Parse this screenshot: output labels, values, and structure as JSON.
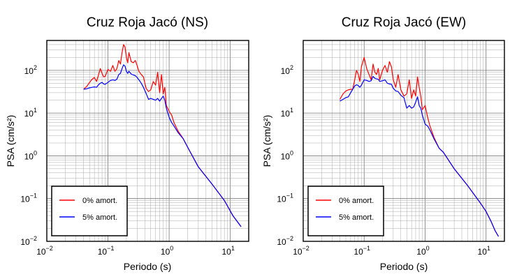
{
  "chart_data": [
    {
      "type": "line",
      "title": "Cruz Roja Jacó (NS)",
      "xlabel": "Periodo (s)",
      "ylabel": "PSA (cm/s²)",
      "xscale": "log",
      "yscale": "log",
      "xlim": [
        0.01,
        20
      ],
      "ylim": [
        0.01,
        500
      ],
      "xticks": [
        0.01,
        0.1,
        1,
        10
      ],
      "xtick_labels": [
        {
          "base": "10",
          "exp": "−2"
        },
        {
          "base": "10",
          "exp": "−1"
        },
        {
          "base": "10",
          "exp": "0"
        },
        {
          "base": "10",
          "exp": "1"
        }
      ],
      "yticks": [
        0.01,
        0.1,
        1,
        10,
        100
      ],
      "ytick_labels": [
        {
          "base": "10",
          "exp": "−2"
        },
        {
          "base": "10",
          "exp": "−1"
        },
        {
          "base": "10",
          "exp": "0"
        },
        {
          "base": "10",
          "exp": "1"
        },
        {
          "base": "10",
          "exp": "2"
        }
      ],
      "grid": true,
      "legend_position": "bottom-left",
      "series": [
        {
          "name": "0% amort.",
          "color": "#ff0000",
          "points": [
            [
              0.04,
              36
            ],
            [
              0.045,
              42
            ],
            [
              0.05,
              52
            ],
            [
              0.055,
              62
            ],
            [
              0.06,
              68
            ],
            [
              0.065,
              55
            ],
            [
              0.07,
              78
            ],
            [
              0.075,
              110
            ],
            [
              0.08,
              85
            ],
            [
              0.085,
              70
            ],
            [
              0.09,
              72
            ],
            [
              0.1,
              105
            ],
            [
              0.11,
              95
            ],
            [
              0.12,
              130
            ],
            [
              0.13,
              95
            ],
            [
              0.14,
              110
            ],
            [
              0.15,
              170
            ],
            [
              0.16,
              140
            ],
            [
              0.17,
              260
            ],
            [
              0.18,
              400
            ],
            [
              0.19,
              350
            ],
            [
              0.2,
              200
            ],
            [
              0.21,
              150
            ],
            [
              0.22,
              260
            ],
            [
              0.24,
              160
            ],
            [
              0.26,
              150
            ],
            [
              0.28,
              170
            ],
            [
              0.3,
              130
            ],
            [
              0.32,
              95
            ],
            [
              0.35,
              80
            ],
            [
              0.38,
              70
            ],
            [
              0.42,
              38
            ],
            [
              0.46,
              32
            ],
            [
              0.5,
              35
            ],
            [
              0.55,
              55
            ],
            [
              0.6,
              45
            ],
            [
              0.65,
              90
            ],
            [
              0.7,
              30
            ],
            [
              0.75,
              80
            ],
            [
              0.8,
              28
            ],
            [
              0.85,
              40
            ],
            [
              0.9,
              15
            ],
            [
              1.0,
              11
            ],
            [
              1.1,
              9
            ],
            [
              1.2,
              6
            ],
            [
              1.4,
              3.8
            ],
            [
              1.7,
              2.5
            ],
            [
              2,
              1.6
            ],
            [
              3,
              0.55
            ],
            [
              5,
              0.22
            ],
            [
              8,
              0.09
            ],
            [
              11,
              0.04
            ],
            [
              15,
              0.022
            ]
          ]
        },
        {
          "name": "5% amort.",
          "color": "#0000ff",
          "points": [
            [
              0.04,
              36
            ],
            [
              0.045,
              37
            ],
            [
              0.05,
              39
            ],
            [
              0.055,
              40
            ],
            [
              0.06,
              41
            ],
            [
              0.065,
              40
            ],
            [
              0.07,
              46
            ],
            [
              0.075,
              50
            ],
            [
              0.08,
              52
            ],
            [
              0.085,
              48
            ],
            [
              0.09,
              47
            ],
            [
              0.1,
              52
            ],
            [
              0.11,
              58
            ],
            [
              0.12,
              60
            ],
            [
              0.13,
              58
            ],
            [
              0.14,
              62
            ],
            [
              0.15,
              80
            ],
            [
              0.16,
              85
            ],
            [
              0.17,
              110
            ],
            [
              0.18,
              135
            ],
            [
              0.19,
              125
            ],
            [
              0.2,
              95
            ],
            [
              0.21,
              85
            ],
            [
              0.22,
              95
            ],
            [
              0.24,
              82
            ],
            [
              0.26,
              78
            ],
            [
              0.28,
              75
            ],
            [
              0.3,
              68
            ],
            [
              0.32,
              60
            ],
            [
              0.35,
              50
            ],
            [
              0.38,
              40
            ],
            [
              0.42,
              29
            ],
            [
              0.46,
              21
            ],
            [
              0.5,
              22
            ],
            [
              0.55,
              21
            ],
            [
              0.6,
              20
            ],
            [
              0.65,
              22
            ],
            [
              0.7,
              19
            ],
            [
              0.75,
              22
            ],
            [
              0.8,
              25
            ],
            [
              0.85,
              20
            ],
            [
              0.9,
              13
            ],
            [
              1.0,
              8
            ],
            [
              1.1,
              6
            ],
            [
              1.2,
              5
            ],
            [
              1.4,
              3.5
            ],
            [
              1.7,
              2.5
            ],
            [
              2,
              1.6
            ],
            [
              3,
              0.55
            ],
            [
              5,
              0.22
            ],
            [
              8,
              0.09
            ],
            [
              11,
              0.04
            ],
            [
              15,
              0.022
            ]
          ]
        }
      ]
    },
    {
      "type": "line",
      "title": "Cruz Roja Jacó (EW)",
      "xlabel": "Periodo (s)",
      "ylabel": "PSA (cm/s²)",
      "xscale": "log",
      "yscale": "log",
      "xlim": [
        0.01,
        20
      ],
      "ylim": [
        0.01,
        500
      ],
      "xticks": [
        0.01,
        0.1,
        1,
        10
      ],
      "xtick_labels": [
        {
          "base": "10",
          "exp": "−2"
        },
        {
          "base": "10",
          "exp": "−1"
        },
        {
          "base": "10",
          "exp": "0"
        },
        {
          "base": "10",
          "exp": "1"
        }
      ],
      "yticks": [
        0.01,
        0.1,
        1,
        10,
        100
      ],
      "ytick_labels": [
        {
          "base": "10",
          "exp": "−2"
        },
        {
          "base": "10",
          "exp": "−1"
        },
        {
          "base": "10",
          "exp": "0"
        },
        {
          "base": "10",
          "exp": "1"
        },
        {
          "base": "10",
          "exp": "2"
        }
      ],
      "grid": true,
      "legend_position": "bottom-left",
      "series": [
        {
          "name": "0% amort.",
          "color": "#ff0000",
          "points": [
            [
              0.04,
              21
            ],
            [
              0.045,
              28
            ],
            [
              0.05,
              33
            ],
            [
              0.055,
              35
            ],
            [
              0.06,
              36
            ],
            [
              0.065,
              36
            ],
            [
              0.07,
              60
            ],
            [
              0.075,
              100
            ],
            [
              0.08,
              80
            ],
            [
              0.085,
              55
            ],
            [
              0.09,
              120
            ],
            [
              0.1,
              200
            ],
            [
              0.11,
              110
            ],
            [
              0.12,
              80
            ],
            [
              0.13,
              60
            ],
            [
              0.14,
              140
            ],
            [
              0.15,
              90
            ],
            [
              0.16,
              80
            ],
            [
              0.17,
              110
            ],
            [
              0.18,
              60
            ],
            [
              0.2,
              100
            ],
            [
              0.22,
              130
            ],
            [
              0.24,
              90
            ],
            [
              0.26,
              160
            ],
            [
              0.28,
              120
            ],
            [
              0.3,
              60
            ],
            [
              0.33,
              40
            ],
            [
              0.36,
              80
            ],
            [
              0.4,
              35
            ],
            [
              0.45,
              25
            ],
            [
              0.5,
              28
            ],
            [
              0.55,
              60
            ],
            [
              0.6,
              22
            ],
            [
              0.65,
              35
            ],
            [
              0.7,
              25
            ],
            [
              0.75,
              70
            ],
            [
              0.8,
              40
            ],
            [
              0.85,
              25
            ],
            [
              0.9,
              12
            ],
            [
              1.0,
              15
            ],
            [
              1.1,
              8
            ],
            [
              1.2,
              5
            ],
            [
              1.4,
              2.7
            ],
            [
              1.7,
              1.5
            ],
            [
              2,
              1.2
            ],
            [
              3,
              0.5
            ],
            [
              5,
              0.2
            ],
            [
              8,
              0.08
            ],
            [
              10,
              0.05
            ],
            [
              12,
              0.03
            ],
            [
              14,
              0.018
            ],
            [
              16,
              0.013
            ]
          ]
        },
        {
          "name": "5% amort.",
          "color": "#0000ff",
          "points": [
            [
              0.04,
              19
            ],
            [
              0.045,
              21
            ],
            [
              0.05,
              23
            ],
            [
              0.055,
              24
            ],
            [
              0.06,
              30
            ],
            [
              0.065,
              36
            ],
            [
              0.07,
              43
            ],
            [
              0.075,
              46
            ],
            [
              0.08,
              44
            ],
            [
              0.085,
              40
            ],
            [
              0.09,
              45
            ],
            [
              0.1,
              60
            ],
            [
              0.11,
              58
            ],
            [
              0.12,
              55
            ],
            [
              0.13,
              57
            ],
            [
              0.14,
              72
            ],
            [
              0.15,
              65
            ],
            [
              0.16,
              63
            ],
            [
              0.17,
              62
            ],
            [
              0.18,
              55
            ],
            [
              0.2,
              57
            ],
            [
              0.22,
              60
            ],
            [
              0.24,
              50
            ],
            [
              0.26,
              48
            ],
            [
              0.28,
              47
            ],
            [
              0.3,
              38
            ],
            [
              0.33,
              33
            ],
            [
              0.36,
              32
            ],
            [
              0.4,
              26
            ],
            [
              0.45,
              23
            ],
            [
              0.5,
              13
            ],
            [
              0.55,
              15
            ],
            [
              0.6,
              13
            ],
            [
              0.65,
              14
            ],
            [
              0.7,
              18
            ],
            [
              0.75,
              24
            ],
            [
              0.8,
              15
            ],
            [
              0.85,
              13
            ],
            [
              0.9,
              9
            ],
            [
              1.0,
              5.5
            ],
            [
              1.1,
              5
            ],
            [
              1.2,
              4
            ],
            [
              1.4,
              2.5
            ],
            [
              1.7,
              1.5
            ],
            [
              2,
              1.2
            ],
            [
              3,
              0.5
            ],
            [
              5,
              0.2
            ],
            [
              8,
              0.08
            ],
            [
              10,
              0.05
            ],
            [
              12,
              0.03
            ],
            [
              14,
              0.018
            ],
            [
              16,
              0.013
            ]
          ]
        }
      ]
    }
  ]
}
